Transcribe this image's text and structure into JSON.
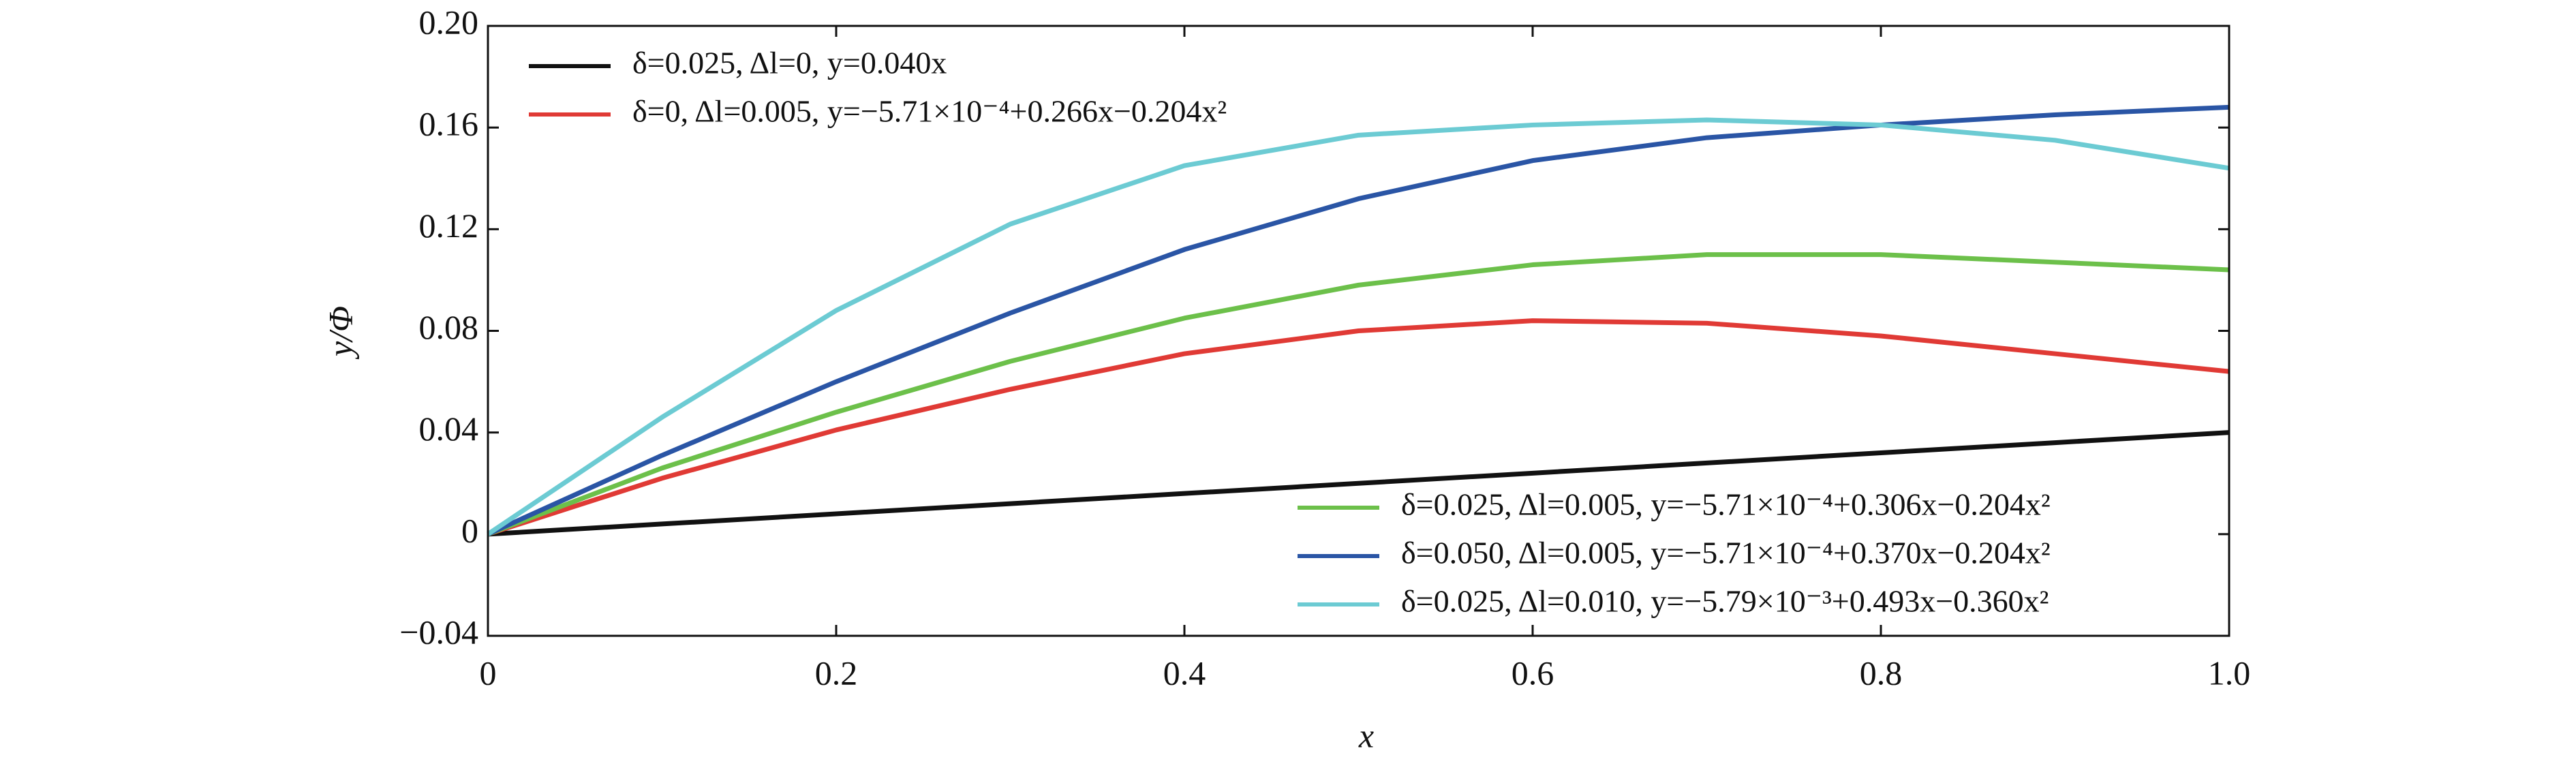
{
  "chart_data": {
    "type": "line",
    "x_label": "x",
    "y_label": "y/Φ",
    "x": [
      0,
      0.1,
      0.2,
      0.3,
      0.4,
      0.5,
      0.6,
      0.7,
      0.8,
      0.9,
      1.0
    ],
    "series": [
      {
        "name": "δ=0.025, Δl=0, y=0.040x",
        "color": "#111111",
        "legend": "upper left",
        "values": [
          0,
          0.004,
          0.008,
          0.012,
          0.016,
          0.02,
          0.024,
          0.028,
          0.032,
          0.036,
          0.04
        ]
      },
      {
        "name": "δ=0, Δl=0.005, y=−5.71×10⁻⁴+0.266x−0.204x²",
        "color": "#e03a35",
        "legend": "upper left",
        "values": [
          0,
          0.022,
          0.041,
          0.057,
          0.071,
          0.08,
          0.084,
          0.083,
          0.078,
          0.071,
          0.064
        ]
      },
      {
        "name": "δ=0.025, Δl=0.005, y=−5.71×10⁻⁴+0.306x−0.204x²",
        "color": "#6cc04a",
        "legend": "lower right",
        "values": [
          0,
          0.026,
          0.048,
          0.068,
          0.085,
          0.098,
          0.106,
          0.11,
          0.11,
          0.107,
          0.104
        ]
      },
      {
        "name": "δ=0.050, Δl=0.005, y=−5.71×10⁻⁴+0.370x−0.204x²",
        "color": "#2a55a5",
        "legend": "lower right",
        "values": [
          0,
          0.031,
          0.06,
          0.087,
          0.112,
          0.132,
          0.147,
          0.156,
          0.161,
          0.165,
          0.168
        ]
      },
      {
        "name": "δ=0.025, Δl=0.010, y=−5.79×10⁻³+0.493x−0.360x²",
        "color": "#6ccbd3",
        "legend": "lower right",
        "values": [
          0,
          0.046,
          0.088,
          0.122,
          0.145,
          0.157,
          0.161,
          0.163,
          0.161,
          0.155,
          0.144
        ]
      }
    ],
    "xlim": [
      0,
      1.0
    ],
    "ylim": [
      -0.04,
      0.2
    ],
    "xticks": [
      0,
      0.2,
      0.4,
      0.6,
      0.8,
      {
        "value": 1.0,
        "label": "1.0"
      }
    ],
    "yticks": [
      {
        "value": -0.04,
        "label": "−0.04"
      },
      0,
      0.04,
      0.08,
      0.12,
      0.16,
      {
        "value": 0.2,
        "label": "0.20"
      }
    ],
    "grid": false
  }
}
